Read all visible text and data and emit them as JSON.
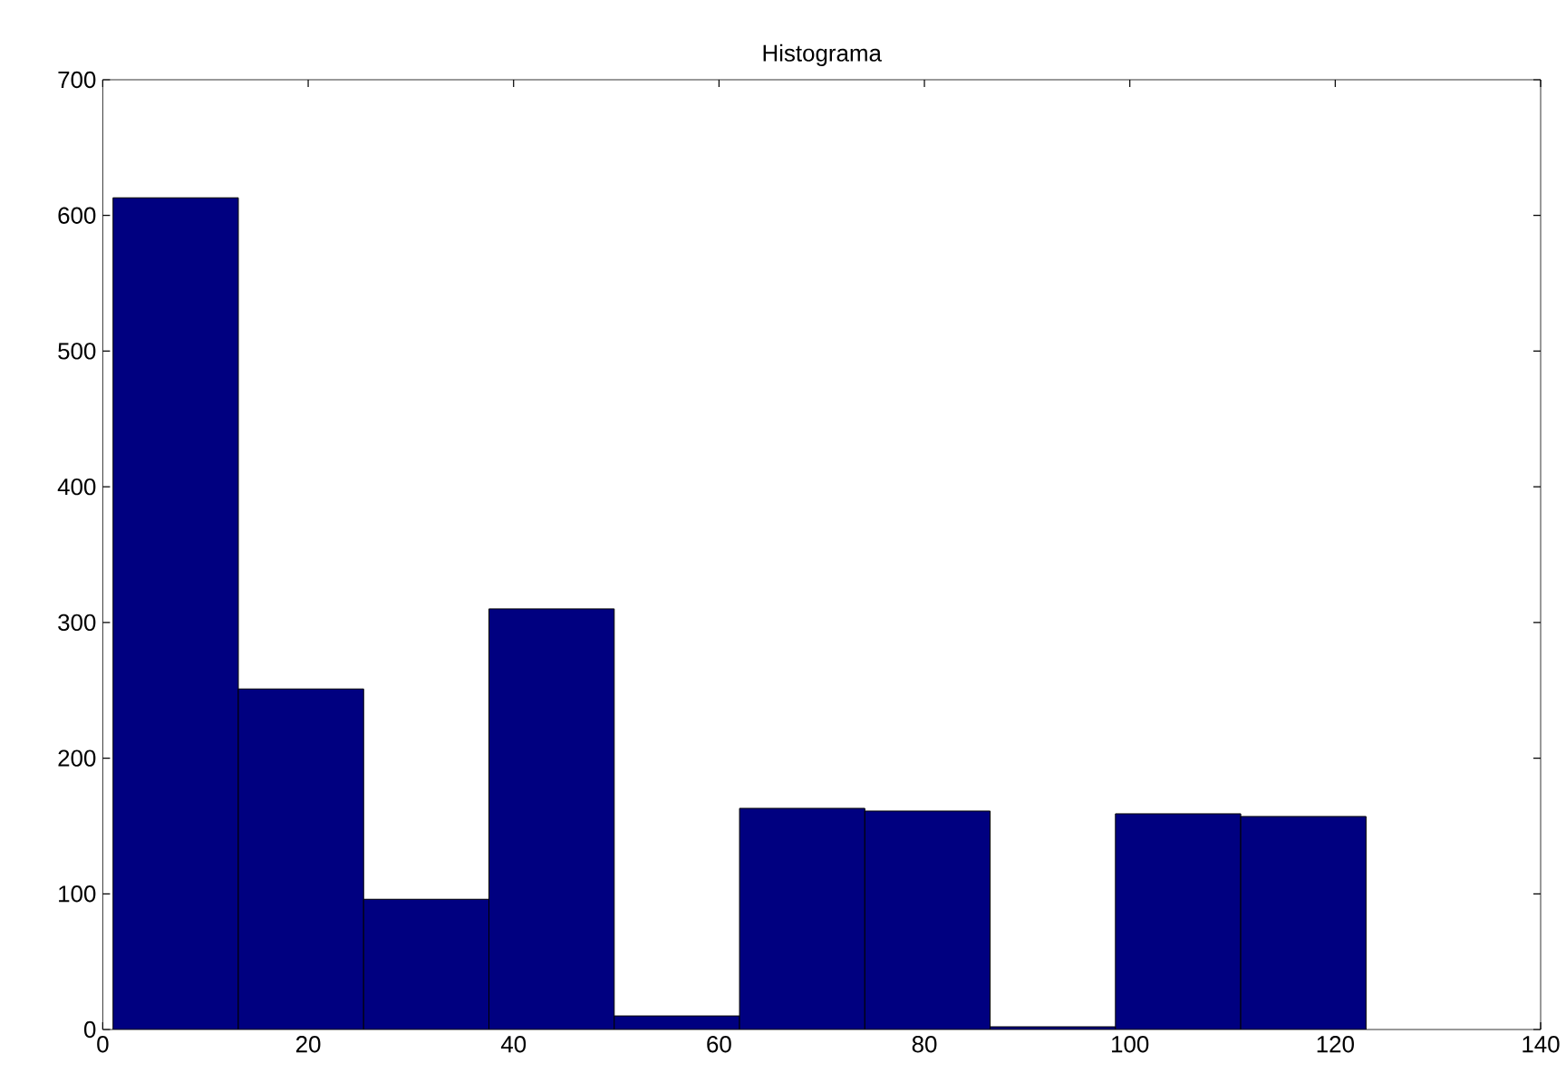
{
  "chart_data": {
    "type": "histogram",
    "title": "Histograma",
    "bins": [
      1,
      13.2,
      25.4,
      37.6,
      49.8,
      62,
      74.2,
      86.4,
      98.6,
      110.8,
      123
    ],
    "values": [
      613,
      251,
      96,
      310,
      10,
      163,
      161,
      2,
      159,
      157
    ],
    "color": "#000080",
    "xlim": [
      0,
      140
    ],
    "xticks": [
      0,
      20,
      40,
      60,
      80,
      100,
      120,
      140
    ],
    "ylim": [
      0,
      700
    ],
    "yticks": [
      0,
      100,
      200,
      300,
      400,
      500,
      600,
      700
    ],
    "grid": false
  }
}
